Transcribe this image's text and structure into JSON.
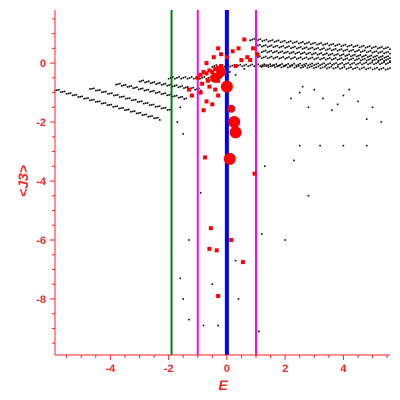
{
  "chart_data": {
    "type": "scatter",
    "title": "",
    "xlabel": "E",
    "ylabel": "<J3>",
    "xlim": [
      -5.9,
      5.6
    ],
    "ylim": [
      -9.9,
      1.8
    ],
    "grid": false,
    "colors": {
      "axis": "#ff2222",
      "black_points": "#000000",
      "red_points": "#ff0000",
      "green_line": "#008000",
      "magenta_line": "#ff00ff",
      "blue_line": "#0000ff"
    },
    "x_ticks": [
      {
        "value": -4,
        "label": "-4"
      },
      {
        "value": -2,
        "label": "-2"
      },
      {
        "value": 0,
        "label": "0"
      },
      {
        "value": 2,
        "label": "2"
      },
      {
        "value": 4,
        "label": "4"
      }
    ],
    "y_ticks": [
      {
        "value": 0,
        "label": "0"
      },
      {
        "value": -2,
        "label": "-2"
      },
      {
        "value": -4,
        "label": "-4"
      },
      {
        "value": -6,
        "label": "-6"
      },
      {
        "value": -8,
        "label": "-8"
      }
    ],
    "vertical_lines": [
      {
        "x": -1.9,
        "color": "#008000",
        "width": 2
      },
      {
        "x": -1.0,
        "color": "#ff00ff",
        "width": 2
      },
      {
        "x": 0.0,
        "color": "#0000ff",
        "width": 4
      },
      {
        "x": 1.0,
        "color": "#ff00ff",
        "width": 2
      }
    ],
    "black_series": {
      "bands": [
        {
          "x0": -5.9,
          "y0": -0.9,
          "x1": -2.3,
          "y1": -1.9,
          "n": 55
        },
        {
          "x0": -4.7,
          "y0": -0.85,
          "x1": -1.9,
          "y1": -1.6,
          "n": 42
        },
        {
          "x0": -3.8,
          "y0": -0.7,
          "x1": -1.4,
          "y1": -1.2,
          "n": 38
        },
        {
          "x0": -3.0,
          "y0": -0.6,
          "x1": -0.9,
          "y1": -0.9,
          "n": 34
        },
        {
          "x0": -2.0,
          "y0": -0.5,
          "x1": -0.2,
          "y1": -0.5,
          "n": 26
        },
        {
          "x0": -0.5,
          "y0": -0.1,
          "x1": 5.6,
          "y1": 0.0,
          "n": 90
        },
        {
          "x0": 0.8,
          "y0": 0.8,
          "x1": 5.6,
          "y1": 0.5,
          "n": 70
        },
        {
          "x0": 1.0,
          "y0": 0.6,
          "x1": 5.6,
          "y1": 0.35,
          "n": 70
        },
        {
          "x0": 1.2,
          "y0": 0.4,
          "x1": 5.6,
          "y1": 0.2,
          "n": 70
        },
        {
          "x0": 1.0,
          "y0": 0.2,
          "x1": 5.6,
          "y1": 0.1,
          "n": 70
        },
        {
          "x0": 1.2,
          "y0": -0.1,
          "x1": 5.6,
          "y1": -0.2,
          "n": 60
        }
      ],
      "points": [
        [
          2.5,
          -1.0
        ],
        [
          3.0,
          -0.9
        ],
        [
          3.3,
          -1.2
        ],
        [
          2.8,
          -1.5
        ],
        [
          4.0,
          -1.1
        ],
        [
          4.5,
          -1.3
        ],
        [
          5.0,
          -1.5
        ],
        [
          3.6,
          -1.6
        ],
        [
          2.2,
          -1.2
        ],
        [
          4.8,
          -1.9
        ],
        [
          5.3,
          -2.0
        ],
        [
          3.8,
          -1.4
        ],
        [
          2.6,
          -0.8
        ],
        [
          4.2,
          -0.9
        ],
        [
          2.5,
          -2.8
        ],
        [
          3.2,
          -2.8
        ],
        [
          4.0,
          -2.8
        ],
        [
          4.8,
          -2.8
        ],
        [
          2.3,
          -3.3
        ],
        [
          2.8,
          -4.5
        ],
        [
          1.3,
          -3.5
        ],
        [
          1.2,
          -5.8
        ],
        [
          2.0,
          -6.0
        ],
        [
          0.3,
          -6.7
        ],
        [
          1.1,
          -9.1
        ],
        [
          -0.8,
          -8.9
        ],
        [
          -1.3,
          -8.7
        ],
        [
          -1.5,
          -8.0
        ],
        [
          -1.6,
          -7.3
        ],
        [
          -1.3,
          -6.0
        ],
        [
          -1.9,
          -6.5
        ],
        [
          -0.3,
          -8.9
        ],
        [
          0.4,
          -8.0
        ],
        [
          -0.5,
          -7.5
        ],
        [
          -1.7,
          -2.0
        ],
        [
          -1.5,
          -2.4
        ],
        [
          -1.6,
          -1.5
        ],
        [
          0.1,
          -0.3
        ],
        [
          0.3,
          -0.4
        ],
        [
          0.6,
          -0.2
        ],
        [
          -0.9,
          -4.4
        ]
      ]
    },
    "red_series": {
      "points": [
        [
          -1.0,
          -0.5,
          3
        ],
        [
          -0.9,
          -0.4,
          3
        ],
        [
          -0.8,
          -0.3,
          3
        ],
        [
          -0.7,
          -0.35,
          3
        ],
        [
          -0.6,
          -0.25,
          3
        ],
        [
          -0.5,
          -0.3,
          3
        ],
        [
          -0.4,
          -0.2,
          3
        ],
        [
          -0.3,
          -0.15,
          3
        ],
        [
          -0.5,
          -0.55,
          3
        ],
        [
          -0.65,
          -0.6,
          3
        ],
        [
          -0.85,
          -0.7,
          3
        ],
        [
          -0.3,
          -0.6,
          3
        ],
        [
          -0.2,
          -0.4,
          3
        ],
        [
          -0.6,
          -0.8,
          3
        ],
        [
          -0.4,
          -0.9,
          3
        ],
        [
          -0.7,
          0.0,
          3
        ],
        [
          -0.45,
          0.2,
          3
        ],
        [
          -0.3,
          0.5,
          3
        ],
        [
          -0.2,
          -0.1,
          3
        ],
        [
          -0.9,
          -1.0,
          3
        ],
        [
          -1.2,
          -1.1,
          3
        ],
        [
          -1.3,
          -0.9,
          3
        ],
        [
          -0.7,
          -1.3,
          3
        ],
        [
          -0.8,
          -1.6,
          3
        ],
        [
          -0.5,
          -1.4,
          3
        ],
        [
          -0.3,
          -1.1,
          3
        ],
        [
          -0.4,
          -0.5,
          5
        ],
        [
          -0.2,
          -0.3,
          5
        ],
        [
          0.0,
          -0.8,
          6
        ],
        [
          0.25,
          -2.0,
          6
        ],
        [
          0.3,
          -2.35,
          6
        ],
        [
          0.1,
          -3.25,
          6
        ],
        [
          0.15,
          -1.55,
          4
        ],
        [
          0.3,
          -0.1,
          3
        ],
        [
          0.5,
          0.1,
          3
        ],
        [
          0.7,
          0.2,
          3
        ],
        [
          0.4,
          0.5,
          3
        ],
        [
          0.6,
          0.8,
          3
        ],
        [
          0.9,
          0.5,
          3
        ],
        [
          1.05,
          0.3,
          3
        ],
        [
          0.8,
          0.1,
          3
        ],
        [
          0.2,
          0.4,
          3
        ],
        [
          -0.2,
          0.3,
          3
        ],
        [
          0.0,
          0.2,
          3
        ],
        [
          -0.75,
          -3.2,
          3
        ],
        [
          -0.6,
          -6.3,
          3
        ],
        [
          -0.35,
          -6.35,
          3
        ],
        [
          -0.55,
          -5.6,
          3
        ],
        [
          0.15,
          -6.0,
          3
        ],
        [
          0.55,
          -6.75,
          3
        ],
        [
          -0.3,
          -7.9,
          3
        ],
        [
          0.95,
          -3.75,
          3
        ]
      ]
    }
  }
}
